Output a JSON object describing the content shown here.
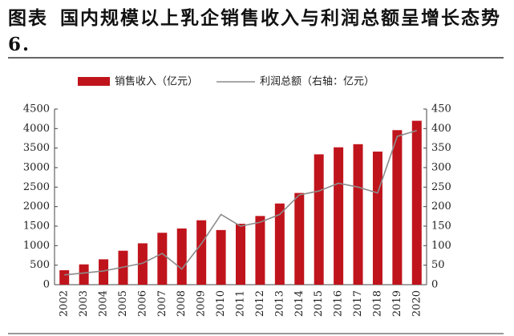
{
  "chart_data": {
    "type": "bar_line",
    "title_label": "图表6.",
    "title": "国内规模以上乳企销售收入与利润总额呈增长态势",
    "categories": [
      "2002",
      "2003",
      "2004",
      "2005",
      "2006",
      "2007",
      "2008",
      "2009",
      "2010",
      "2011",
      "2012",
      "2013",
      "2014",
      "2015",
      "2016",
      "2017",
      "2018",
      "2019",
      "2020"
    ],
    "series": [
      {
        "name": "销售收入（亿元）",
        "color": "#c0141c",
        "kind": "bar",
        "values": [
          370,
          520,
          650,
          870,
          1060,
          1330,
          1440,
          1650,
          1400,
          1560,
          1760,
          2080,
          2350,
          3340,
          3520,
          3600,
          3410,
          3960,
          4200
        ]
      },
      {
        "name": "利润总额（右轴：亿元）",
        "color": "#8c8c8c",
        "kind": "line",
        "axis": "y2",
        "values": [
          25,
          30,
          35,
          45,
          55,
          80,
          40,
          105,
          180,
          150,
          160,
          180,
          230,
          240,
          260,
          250,
          235,
          380,
          395
        ]
      }
    ],
    "ylim": [
      0,
      4500
    ],
    "yticks": [
      0,
      500,
      1000,
      1500,
      2000,
      2500,
      3000,
      3500,
      4000,
      4500
    ],
    "y2lim": [
      0,
      450
    ],
    "y2ticks": [
      0,
      50,
      100,
      150,
      200,
      250,
      300,
      350,
      400,
      450
    ],
    "grid": false
  }
}
